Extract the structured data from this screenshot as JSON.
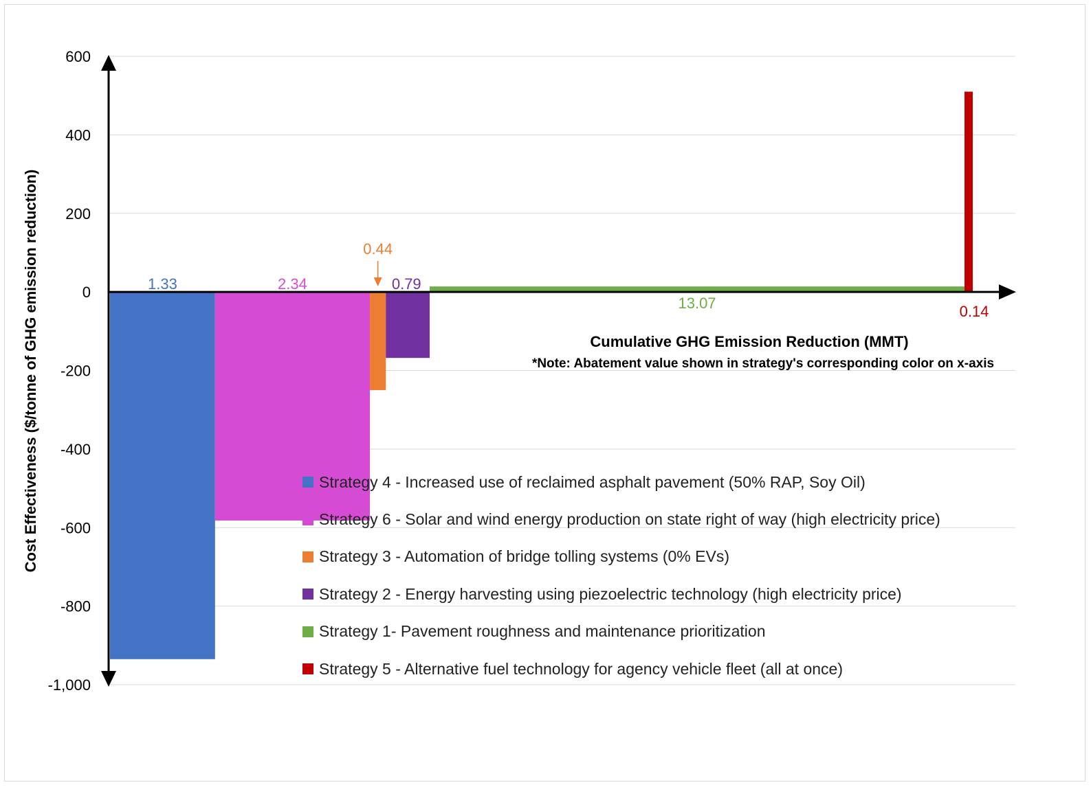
{
  "chart_data": {
    "type": "bar",
    "subtype": "marginal-abatement-cost-curve",
    "xlabel": "Cumulative GHG Emission Reduction (MMT)",
    "note": "*Note: Abatement value shown in strategy's corresponding color on x-axis",
    "ylabel": "Cost Effectiveness ($/tonne of GHG emission reduction)",
    "ylim": [
      -1000,
      600
    ],
    "yticks": [
      "600",
      "400",
      "200",
      "0",
      "-200",
      "-400",
      "-600",
      "-800",
      "-1,000"
    ],
    "ytick_values": [
      600,
      400,
      200,
      0,
      -200,
      -400,
      -600,
      -800,
      -1000
    ],
    "grid": "horizontal",
    "legend_position": "bottom-right",
    "series": [
      {
        "name": "Strategy 4 - Increased use of reclaimed asphalt pavement (50% RAP, Soy Oil)",
        "abatement": 1.33,
        "label": "1.33",
        "cost": -935,
        "color": "#4472C4"
      },
      {
        "name": "Strategy 6 - Solar and wind energy production on state right of way (high electricity price)",
        "abatement": 2.34,
        "label": "2.34",
        "cost": -582,
        "color": "#D64BD3"
      },
      {
        "name": "Strategy 3 - Automation of bridge tolling systems (0% EVs)",
        "abatement": 0.44,
        "label": "0.44",
        "cost": -250,
        "color": "#ED7D31"
      },
      {
        "name": "Strategy 2 - Energy harvesting using piezoelectric technology (high electricity price)",
        "abatement": 0.79,
        "label": "0.79",
        "cost": -168,
        "color": "#7030A0"
      },
      {
        "name": "Strategy 1- Pavement roughness and maintenance prioritization",
        "abatement": 13.07,
        "label": "13.07",
        "cost": 14,
        "color": "#70AD47"
      },
      {
        "name": "Strategy 5 - Alternative fuel technology for agency vehicle fleet (all at once)",
        "abatement": 0.14,
        "label": "0.14",
        "cost": 510,
        "color": "#C00000"
      }
    ]
  }
}
